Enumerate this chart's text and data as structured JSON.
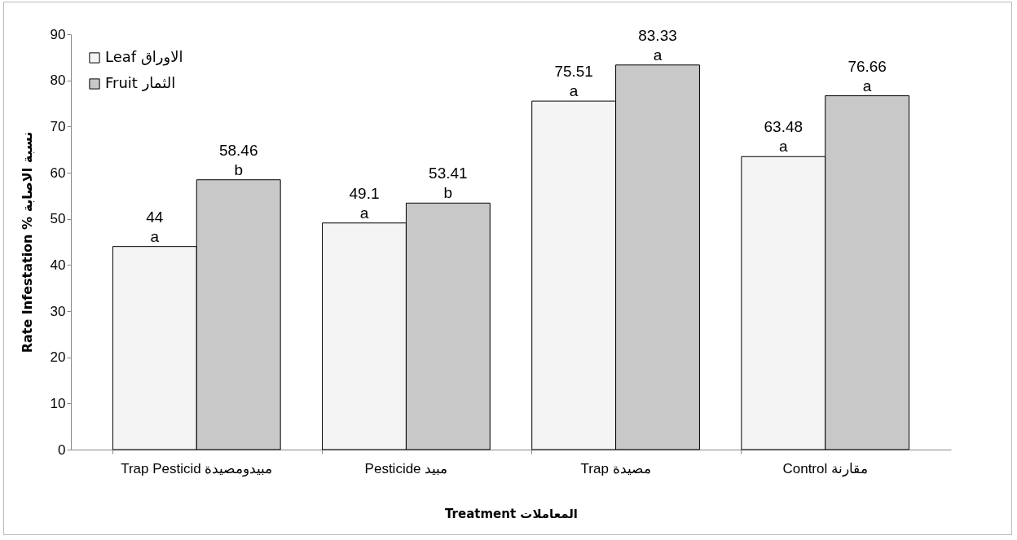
{
  "chart_data": {
    "type": "bar",
    "xlabel": "Treatment المعاملات",
    "ylabel": "Rate Infestation % نسبة الاصابة",
    "categories": [
      "Trap Pesticid مبيدومصيدة",
      "Pesticide مبيد",
      "Trap مصيدة",
      "Control مقارنة"
    ],
    "series": [
      {
        "name": "Leaf الاوراق",
        "color": "#f4f4f4",
        "values": [
          44,
          49.1,
          75.51,
          63.48
        ]
      },
      {
        "name": "Fruit الثمار",
        "color": "#c8c8c8",
        "values": [
          58.46,
          53.41,
          83.33,
          76.66
        ]
      }
    ],
    "ylim": [
      0,
      90
    ],
    "yticks": [
      0,
      10,
      20,
      30,
      40,
      50,
      60,
      70,
      80,
      90
    ],
    "grid": false,
    "legend": "top left",
    "data_labels": true,
    "annotations": [
      {
        "text": "a",
        "x": "Trap Pesticid مبيدومصيدة",
        "y": 44
      },
      {
        "text": "b",
        "x": "Trap Pesticid مبيدومصيدة",
        "y": 58.46
      },
      {
        "text": "a",
        "x": "Pesticide مبيد",
        "y": 49.1
      },
      {
        "text": "b",
        "x": "Pesticide مبيد",
        "y": 53.41
      },
      {
        "text": "a",
        "x": "Trap مصيدة",
        "y": 75.51
      },
      {
        "text": "a",
        "x": "Trap مصيدة",
        "y": 83.33
      },
      {
        "text": "a",
        "x": "Control مقارنة",
        "y": 63.48
      },
      {
        "text": "a",
        "x": "Control مقارنة",
        "y": 76.66
      }
    ]
  }
}
